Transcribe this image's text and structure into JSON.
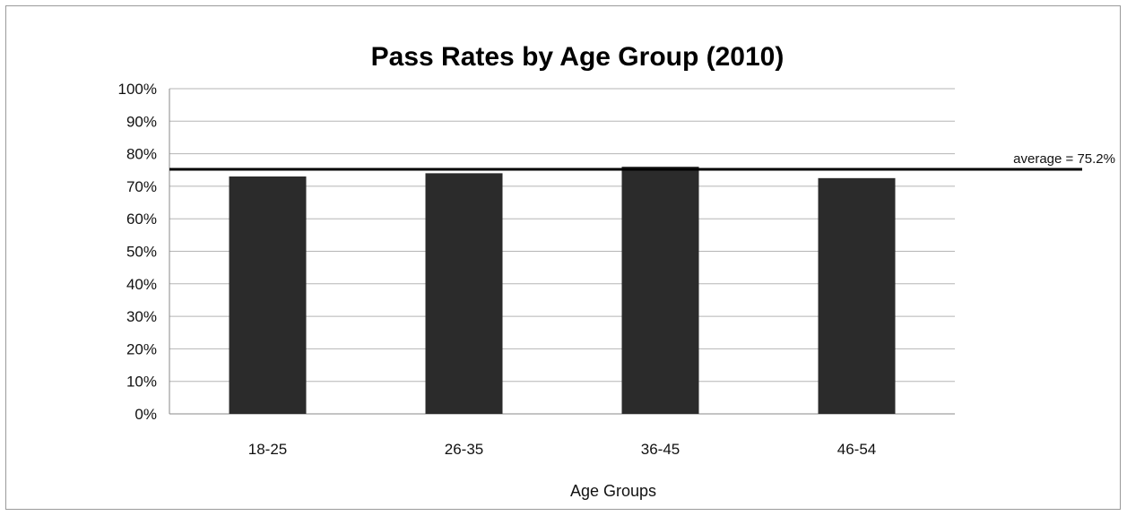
{
  "chart_data": {
    "type": "bar",
    "title": "Pass Rates by Age Group (2010)",
    "xlabel": "Age Groups",
    "ylabel": "",
    "categories": [
      "18-25",
      "26-35",
      "36-45",
      "46-54"
    ],
    "values": [
      73,
      74,
      76,
      72.5
    ],
    "ylim": [
      0,
      100
    ],
    "yticks": [
      "0%",
      "10%",
      "20%",
      "30%",
      "40%",
      "50%",
      "60%",
      "70%",
      "80%",
      "90%",
      "100%"
    ],
    "grid": true,
    "legend": "none",
    "bar_color": "#2b2b2b",
    "reference_line": {
      "value": 75.2,
      "label": "average = 75.2%",
      "color": "#000000"
    }
  }
}
